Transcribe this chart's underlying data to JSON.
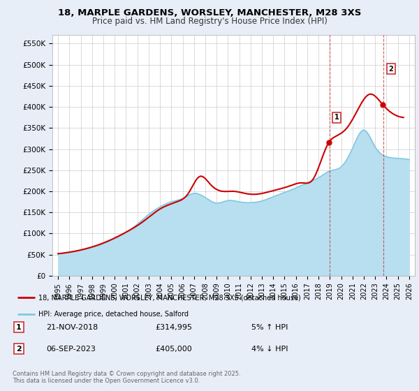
{
  "title_line1": "18, MARPLE GARDENS, WORSLEY, MANCHESTER, M28 3XS",
  "title_line2": "Price paid vs. HM Land Registry's House Price Index (HPI)",
  "ylabel_ticks": [
    "£0",
    "£50K",
    "£100K",
    "£150K",
    "£200K",
    "£250K",
    "£300K",
    "£350K",
    "£400K",
    "£450K",
    "£500K",
    "£550K"
  ],
  "ytick_values": [
    0,
    50000,
    100000,
    150000,
    200000,
    250000,
    300000,
    350000,
    400000,
    450000,
    500000,
    550000
  ],
  "ylim": [
    0,
    570000
  ],
  "xlim_start": 1994.5,
  "xlim_end": 2026.5,
  "xtick_years": [
    1995,
    1996,
    1997,
    1998,
    1999,
    2000,
    2001,
    2002,
    2003,
    2004,
    2005,
    2006,
    2007,
    2008,
    2009,
    2010,
    2011,
    2012,
    2013,
    2014,
    2015,
    2016,
    2017,
    2018,
    2019,
    2020,
    2021,
    2022,
    2023,
    2024,
    2025,
    2026
  ],
  "hpi_color": "#7ec8e3",
  "hpi_fill_color": "#b8dff0",
  "price_color": "#cc0000",
  "marker1_x": 2018.89,
  "marker1_y": 314995,
  "marker2_x": 2023.68,
  "marker2_y": 405000,
  "vline1_x": 2019.0,
  "vline2_x": 2023.7,
  "legend_label1": "18, MARPLE GARDENS, WORSLEY, MANCHESTER, M28 3XS (detached house)",
  "legend_label2": "HPI: Average price, detached house, Salford",
  "table_rows": [
    {
      "num": "1",
      "date": "21-NOV-2018",
      "price": "£314,995",
      "hpi": "5% ↑ HPI"
    },
    {
      "num": "2",
      "date": "06-SEP-2023",
      "price": "£405,000",
      "hpi": "4% ↓ HPI"
    }
  ],
  "footer": "Contains HM Land Registry data © Crown copyright and database right 2025.\nThis data is licensed under the Open Government Licence v3.0.",
  "bg_color": "#e8eef8",
  "plot_bg_color": "#ffffff",
  "grid_color": "#cccccc",
  "hpi_years": [
    1995,
    1996,
    1997,
    1998,
    1999,
    2000,
    2001,
    2002,
    2003,
    2004,
    2005,
    2006,
    2007,
    2008,
    2009,
    2010,
    2011,
    2012,
    2013,
    2014,
    2015,
    2016,
    2017,
    2018,
    2019,
    2020,
    2021,
    2022,
    2023,
    2024,
    2025,
    2026
  ],
  "hpi_values": [
    52000,
    55000,
    60000,
    67000,
    76000,
    88000,
    102000,
    122000,
    145000,
    163000,
    175000,
    183000,
    195000,
    185000,
    172000,
    178000,
    175000,
    173000,
    177000,
    187000,
    197000,
    208000,
    220000,
    232000,
    248000,
    258000,
    302000,
    345000,
    305000,
    282000,
    278000,
    275000
  ],
  "price_years": [
    1995.0,
    1996.5,
    1998.0,
    1999.5,
    2001.0,
    2002.5,
    2004.0,
    2005.5,
    2006.5,
    2007.5,
    2008.5,
    2009.5,
    2010.5,
    2011.5,
    2012.5,
    2013.5,
    2014.5,
    2015.5,
    2016.5,
    2017.5,
    2018.89,
    2019.5,
    2020.5,
    2021.5,
    2022.5,
    2023.68,
    2024.5,
    2025.5
  ],
  "price_values": [
    52000,
    58000,
    68000,
    83000,
    103000,
    128000,
    158000,
    175000,
    195000,
    235000,
    215000,
    200000,
    200000,
    195000,
    193000,
    198000,
    205000,
    213000,
    220000,
    228000,
    314995,
    330000,
    350000,
    395000,
    430000,
    405000,
    385000,
    375000
  ]
}
